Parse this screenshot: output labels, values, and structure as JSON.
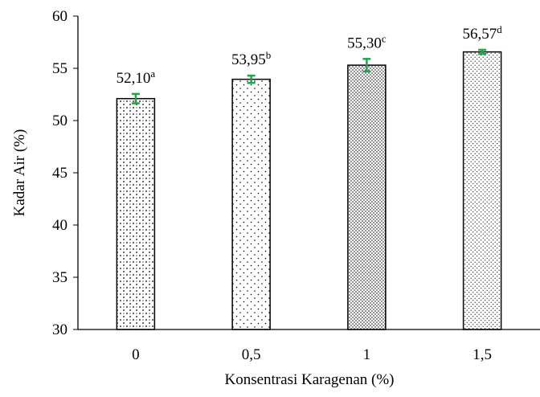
{
  "chart_data": {
    "type": "bar",
    "categories": [
      "0",
      "0,5",
      "1",
      "1,5"
    ],
    "values": [
      52.1,
      53.95,
      55.3,
      56.57
    ],
    "errors": [
      0.45,
      0.35,
      0.6,
      0.2
    ],
    "data_labels": [
      {
        "value": "52,10",
        "letter": "a"
      },
      {
        "value": "53,95",
        "letter": "b"
      },
      {
        "value": "55,30",
        "letter": "c"
      },
      {
        "value": "56,57",
        "letter": "d"
      }
    ],
    "patterns": [
      "diagonal-dots",
      "sparse-dots",
      "dense-dots",
      "fine-dots"
    ],
    "xlabel": "Konsentrasi Karagenan (%)",
    "ylabel": "Kadar Air (%)",
    "ylim": [
      30,
      60
    ],
    "yticks": [
      "30",
      "35",
      "40",
      "45",
      "50",
      "55",
      "60"
    ],
    "grid": false,
    "colors": {
      "bar_fill": "#ffffff",
      "bar_stroke": "#000000",
      "error_bar": "#1fa64a",
      "axis": "#000000"
    }
  }
}
